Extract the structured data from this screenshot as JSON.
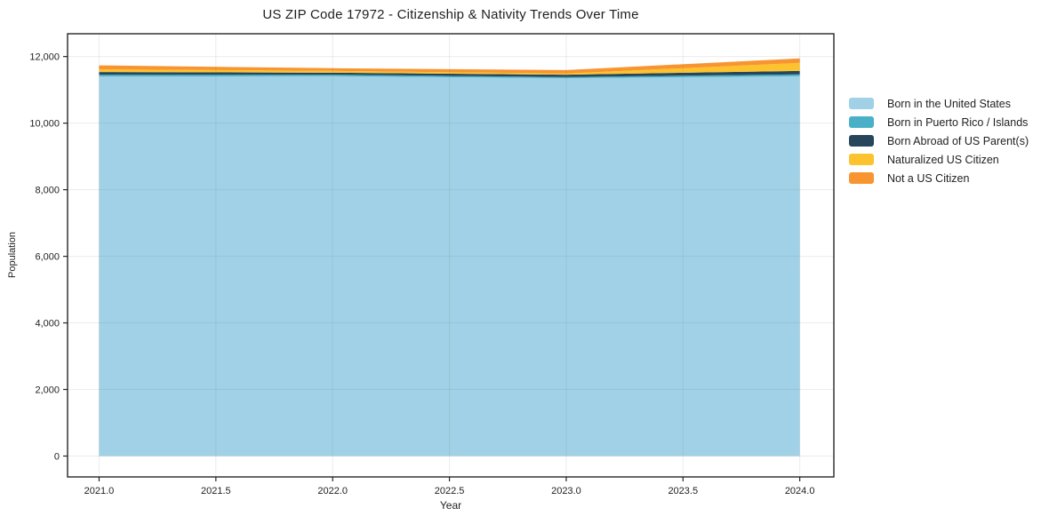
{
  "chart_data": {
    "type": "area",
    "stacked": true,
    "title": "US ZIP Code 17972 - Citizenship & Nativity Trends Over Time",
    "xlabel": "Year",
    "ylabel": "Population",
    "x": [
      2021,
      2022,
      2023,
      2024
    ],
    "series": [
      {
        "name": "Born in the United States",
        "color": "#A0D1E6",
        "values": [
          11400,
          11410,
          11350,
          11410
        ]
      },
      {
        "name": "Born in Puerto Rico / Islands",
        "color": "#4AB0C7",
        "values": [
          55,
          45,
          35,
          55
        ]
      },
      {
        "name": "Born Abroad of US Parent(s)",
        "color": "#27465B",
        "values": [
          80,
          60,
          70,
          105
        ]
      },
      {
        "name": "Naturalized US Citizen",
        "color": "#FCC32E",
        "values": [
          80,
          55,
          35,
          240
        ]
      },
      {
        "name": "Not a US Citizen",
        "color": "#F89530",
        "values": [
          120,
          80,
          105,
          135
        ]
      }
    ],
    "stack_totals": [
      11735,
      11650,
      11595,
      11945
    ],
    "xlim": [
      2020.865,
      2024.146
    ],
    "ylim": [
      -627,
      12685
    ],
    "xticks": {
      "values": [
        2021.0,
        2021.5,
        2022.0,
        2022.5,
        2023.0,
        2023.5,
        2024.0
      ],
      "labels": [
        "2021.0",
        "2021.5",
        "2022.0",
        "2022.5",
        "2023.0",
        "2023.5",
        "2024.0"
      ]
    },
    "yticks": {
      "values": [
        0,
        2000,
        4000,
        6000,
        8000,
        10000,
        12000
      ],
      "labels": [
        "0",
        "2,000",
        "4,000",
        "6,000",
        "8,000",
        "10,000",
        "12,000"
      ]
    },
    "grid": true,
    "legend_position": "right-outside",
    "colors": {
      "background": "#ffffff",
      "frame": "#262626",
      "tick_text": "#1f1f1f",
      "gridline": "#6b6b6b"
    }
  }
}
